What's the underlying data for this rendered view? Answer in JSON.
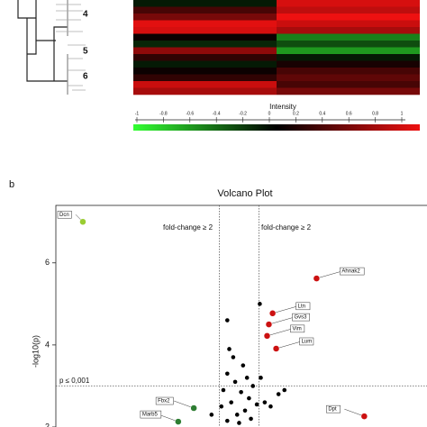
{
  "chart_data": [
    {
      "type": "heatmap",
      "cluster_labels": [
        "4",
        "5",
        "6"
      ],
      "values": [
        [
          -0.1,
          0.9
        ],
        [
          0.3,
          0.8
        ],
        [
          0.5,
          1.0
        ],
        [
          0.95,
          0.85
        ],
        [
          0.9,
          0.7
        ],
        [
          0.05,
          -0.5
        ],
        [
          -0.15,
          -0.3
        ],
        [
          0.6,
          -0.6
        ],
        [
          0.2,
          -0.1
        ],
        [
          -0.1,
          0.1
        ],
        [
          0.05,
          0.3
        ],
        [
          0.2,
          0.4
        ],
        [
          0.85,
          0.3
        ],
        [
          0.7,
          0.5
        ]
      ],
      "colorscale": [
        "#33ff33",
        "#000000",
        "#ee1111"
      ],
      "colorbar": {
        "title": "Intensity",
        "lim": [
          -1,
          1
        ],
        "ticks": [
          -1,
          -0.8,
          -0.6,
          -0.4,
          -0.2,
          0,
          0.2,
          0.4,
          0.6,
          0.8,
          1
        ]
      }
    },
    {
      "type": "scatter",
      "panel_label": "b",
      "title": "Volcano Plot",
      "y_label": "-log10(p)",
      "xlim": [
        -9.3,
        9.9
      ],
      "ylim": [
        2,
        7.4
      ],
      "yticks": [
        2,
        4,
        6
      ],
      "fold_change_lines": [
        -1,
        1
      ],
      "p_line": 3,
      "annotations": [
        "fold-change ≥ 2",
        "fold-change ≥ 2",
        "p ≤ 0,001"
      ],
      "x": [
        -7.93,
        3.93,
        1.7,
        1.51,
        1.42,
        1.88,
        -2.3,
        -3.09,
        6.35,
        -0.6,
        1.05,
        -0.5,
        -0.3,
        0.2,
        -0.6,
        0.4,
        -0.2,
        0.7,
        -0.8,
        0.1,
        0.5,
        -0.4,
        0.9,
        -0.9,
        0.3,
        -0.1,
        0.6,
        -0.6,
        0.0,
        1.3,
        1.6,
        -1.4,
        2.0,
        2.3,
        1.1
      ],
      "values": [
        7.0,
        5.62,
        4.77,
        4.5,
        4.22,
        3.91,
        2.46,
        2.13,
        2.26,
        4.6,
        5.0,
        3.9,
        3.7,
        3.5,
        3.3,
        3.2,
        3.1,
        3.0,
        2.9,
        2.85,
        2.7,
        2.6,
        2.55,
        2.5,
        2.4,
        2.3,
        2.2,
        2.15,
        2.1,
        2.6,
        2.5,
        2.3,
        2.8,
        2.9,
        3.2
      ],
      "point_labels": [
        "Dcn",
        "Ahnak2",
        "Ltn",
        "Gvs3",
        "Vim",
        "Lum",
        "Fbx2",
        "Marb5",
        "Dpt",
        null,
        null,
        null,
        null,
        null,
        null,
        null,
        null,
        null,
        null,
        null,
        null,
        null,
        null,
        null,
        null,
        null,
        null,
        null,
        null,
        null,
        null,
        null,
        null,
        null,
        null
      ],
      "colors": [
        "#9acd32",
        "#cc1111",
        "#cc1111",
        "#cc1111",
        "#cc1111",
        "#cc1111",
        "#2e7d32",
        "#2e7d32",
        "#cc1111",
        "#000000",
        "#000000",
        "#000000",
        "#000000",
        "#000000",
        "#000000",
        "#000000",
        "#000000",
        "#000000",
        "#000000",
        "#000000",
        "#000000",
        "#000000",
        "#000000",
        "#000000",
        "#000000",
        "#000000",
        "#000000",
        "#000000",
        "#000000",
        "#000000",
        "#000000",
        "#000000",
        "#000000",
        "#000000",
        "#000000"
      ]
    }
  ]
}
